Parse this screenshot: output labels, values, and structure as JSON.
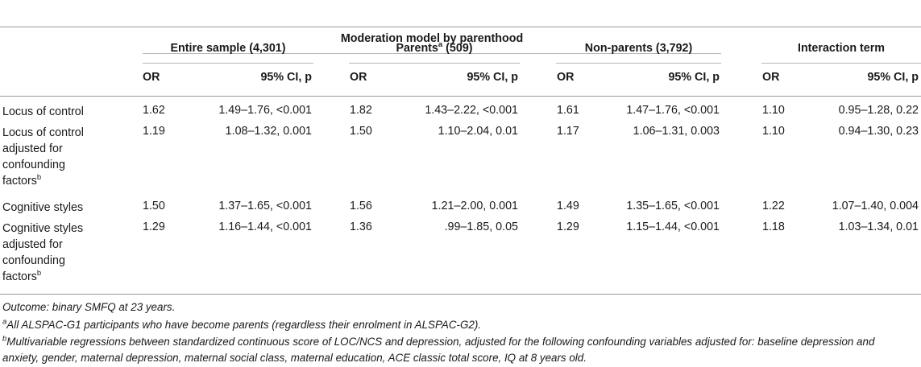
{
  "table": {
    "top_header": "Moderation model by parenthood",
    "groups": [
      {
        "label": "Entire sample (4,301)"
      },
      {
        "label": "Parents",
        "sup": "a",
        "suffix": " (509)"
      },
      {
        "label": "Non-parents (3,792)"
      },
      {
        "label": "Interaction term"
      }
    ],
    "subheaders": {
      "or": "OR",
      "ci": "95% CI, p"
    },
    "rows": [
      {
        "label_lines": [
          "Locus of control"
        ],
        "label_sup": "",
        "cells": [
          {
            "or": "1.62",
            "ci": "1.49–1.76, <0.001"
          },
          {
            "or": "1.82",
            "ci": "1.43–2.22, <0.001"
          },
          {
            "or": "1.61",
            "ci": "1.47–1.76, <0.001"
          },
          {
            "or": "1.10",
            "ci": "0.95–1.28, 0.22"
          }
        ]
      },
      {
        "label_lines": [
          "Locus of control",
          "adjusted for",
          "confounding",
          "factors"
        ],
        "label_sup": "b",
        "cells": [
          {
            "or": "1.19",
            "ci": "1.08–1.32, 0.001"
          },
          {
            "or": "1.50",
            "ci": "1.10–2.04, 0.01"
          },
          {
            "or": "1.17",
            "ci": "1.06–1.31, 0.003"
          },
          {
            "or": "1.10",
            "ci": "0.94–1.30, 0.23"
          }
        ]
      },
      {
        "label_lines": [
          "Cognitive styles"
        ],
        "label_sup": "",
        "cells": [
          {
            "or": "1.50",
            "ci": "1.37–1.65, <0.001"
          },
          {
            "or": "1.56",
            "ci": "1.21–2.00, 0.001"
          },
          {
            "or": "1.49",
            "ci": "1.35–1.65, <0.001"
          },
          {
            "or": "1.22",
            "ci": "1.07–1.40, 0.004"
          }
        ]
      },
      {
        "label_lines": [
          "Cognitive styles",
          "adjusted for",
          "confounding",
          "factors"
        ],
        "label_sup": "b",
        "cells": [
          {
            "or": "1.29",
            "ci": "1.16–1.44, <0.001"
          },
          {
            "or": "1.36",
            "ci": ".99–1.85, 0.05"
          },
          {
            "or": "1.29",
            "ci": "1.15–1.44, <0.001"
          },
          {
            "or": "1.18",
            "ci": "1.03–1.34, 0.01"
          }
        ]
      }
    ]
  },
  "footnotes": {
    "outcome": "Outcome: binary SMFQ at 23 years.",
    "a_mark": "a",
    "a_text": "All ALSPAC-G1 participants who have become parents (regardless their enrolment in ALSPAC-G2).",
    "b_mark": "b",
    "b_line1": "Multivariable regressions between standardized continuous score of LOC/NCS and depression, adjusted for the following confounding variables adjusted for: baseline depression and",
    "b_line2": "anxiety, gender, maternal depression, maternal social class, maternal education, ACE classic total score, IQ at 8 years old."
  }
}
